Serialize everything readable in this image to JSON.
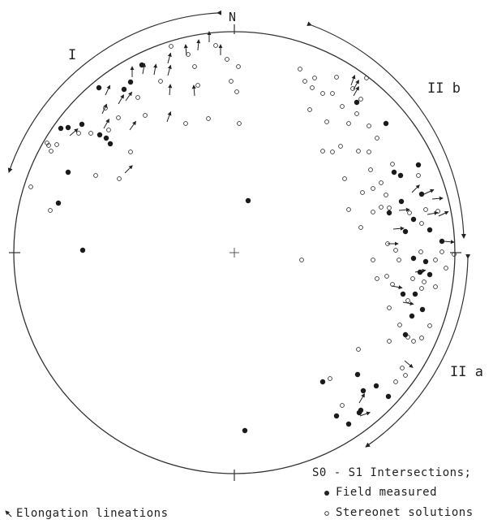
{
  "labels": {
    "north": "N",
    "domain_i": "I",
    "domain_iib": "II b",
    "domain_iia": "II a"
  },
  "legend": {
    "title": "S0 - S1 Intersections;",
    "field_measured": "Field measured",
    "stereonet_solutions": "Stereonet solutions",
    "elongation": "Elongation lineations"
  },
  "colors": {
    "ink": "#222222",
    "background": "#ffffff"
  },
  "icons": {
    "filled": "filled-dot-icon",
    "open": "open-circle-icon",
    "arrow": "lineation-arrow-icon"
  }
}
